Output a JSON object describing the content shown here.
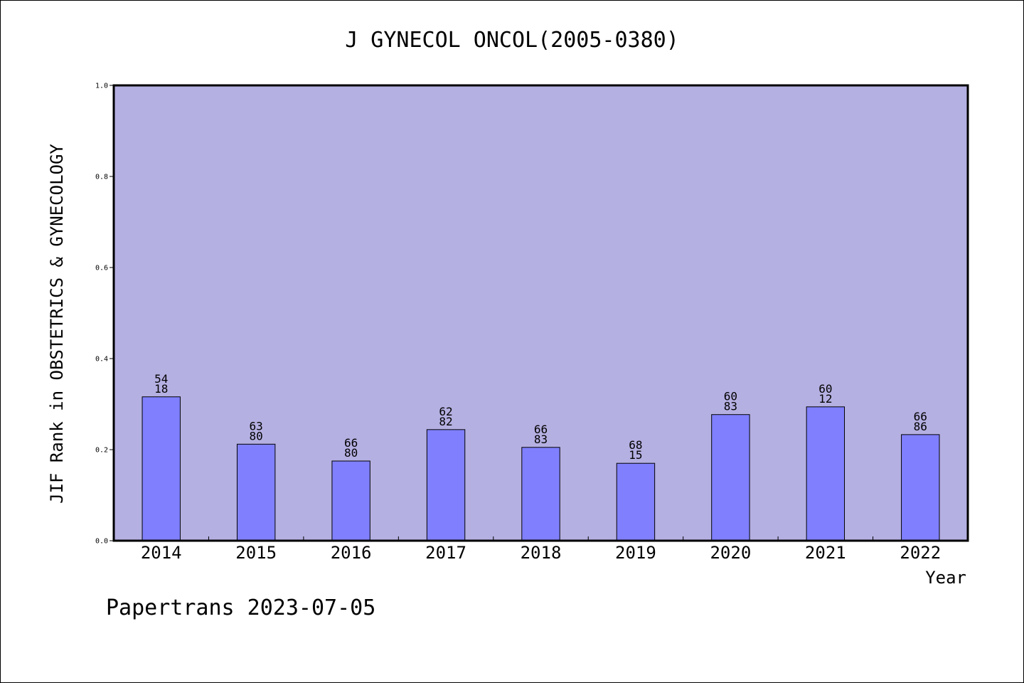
{
  "chart_data": {
    "type": "bar",
    "title": "J GYNECOL ONCOL(2005-0380)",
    "xlabel": "Year",
    "ylabel": "JIF Rank in OBSTETRICS & GYNECOLOGY",
    "ylim": [
      0,
      1.0
    ],
    "yticks": [
      "0.0",
      "0.2",
      "0.4",
      "0.6",
      "0.8",
      "1.0"
    ],
    "grid": false,
    "categories": [
      "2014",
      "2015",
      "2016",
      "2017",
      "2018",
      "2019",
      "2020",
      "2021",
      "2022"
    ],
    "values": [
      0.316,
      0.212,
      0.175,
      0.244,
      0.205,
      0.17,
      0.277,
      0.294,
      0.233
    ],
    "bar_labels": [
      [
        "54",
        "18"
      ],
      [
        "63",
        "80"
      ],
      [
        "66",
        "80"
      ],
      [
        "62",
        "82"
      ],
      [
        "66",
        "83"
      ],
      [
        "68",
        "15"
      ],
      [
        "60",
        "83"
      ],
      [
        "60",
        "12"
      ],
      [
        "66",
        "86"
      ]
    ],
    "colors": {
      "background": "#b5b0e2",
      "bar": "#8080ff",
      "axis": "#000000"
    }
  },
  "footer": "Papertrans 2023-07-05"
}
